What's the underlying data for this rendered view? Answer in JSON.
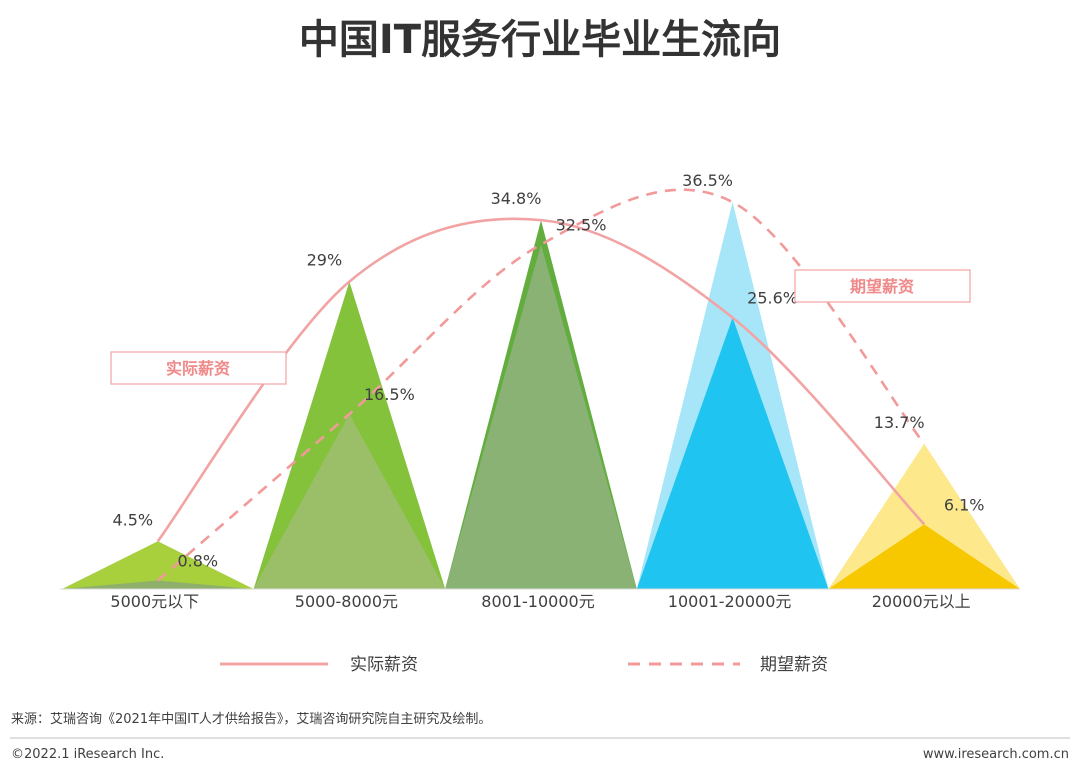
{
  "chart_data": {
    "type": "area",
    "title": "中国IT服务行业毕业生流向",
    "categories": [
      "5000元以下",
      "5000-8000元",
      "8001-10000元",
      "10001-20000元",
      "20000元以上"
    ],
    "series": [
      {
        "name": "实际薪资",
        "values": [
          4.5,
          29,
          34.8,
          25.6,
          6.1
        ],
        "labels": [
          "4.5%",
          "29%",
          "34.8%",
          "25.6%",
          "6.1%"
        ],
        "line_color": "#f2a3a3",
        "line_style": "solid"
      },
      {
        "name": "期望薪资",
        "values": [
          0.8,
          16.5,
          32.5,
          36.5,
          13.7
        ],
        "labels": [
          "0.8%",
          "16.5%",
          "32.5%",
          "36.5%",
          "13.7%"
        ],
        "line_color": "#f29a9a",
        "line_style": "dashed"
      }
    ],
    "category_colors": {
      "actual": [
        "#a8cf3c",
        "#84c23c",
        "#62ad3e",
        "#1fc5f0",
        "#f7c800"
      ],
      "expected": [
        "#8fb06a",
        "#9abf68",
        "#89b274",
        "#a6e6f8",
        "#fde88c"
      ]
    },
    "ylim": [
      0,
      40
    ],
    "legend_position": "bottom",
    "callouts": {
      "actual": "实际薪资",
      "expected": "期望薪资"
    }
  },
  "footer": {
    "source": "来源：艾瑞咨询《2021年中国IT人才供给报告》，艾瑞咨询研究院自主研究及绘制。",
    "copyright": "©2022.1 iResearch Inc.",
    "website": "www.iresearch.com.cn"
  }
}
